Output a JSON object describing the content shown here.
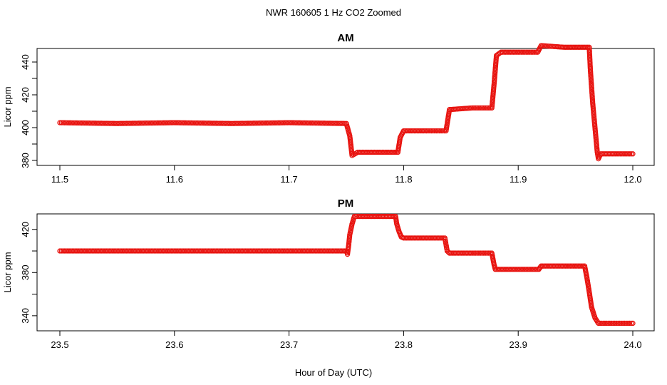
{
  "figure": {
    "title": "NWR  160605  1 Hz CO2 Zoomed",
    "xlabel": "Hour of Day (UTC)"
  },
  "colors": {
    "points": "#e8130f",
    "axis": "#000000"
  },
  "chart_data": [
    {
      "type": "scatter",
      "title": "AM",
      "ylabel": "Licor ppm",
      "xlim": [
        11.5,
        12.0
      ],
      "ylim": [
        380,
        450
      ],
      "x_ticks": [
        "11.5",
        "11.6",
        "11.7",
        "11.8",
        "11.9",
        "12.0"
      ],
      "y_ticks": [
        "380",
        "400",
        "420",
        "440"
      ],
      "y_minor_ticks": [
        390,
        410,
        430,
        450
      ],
      "series": [
        {
          "points": [
            [
              11.5,
              403
            ],
            [
              11.55,
              402.5
            ],
            [
              11.6,
              403
            ],
            [
              11.65,
              402.5
            ],
            [
              11.7,
              403
            ],
            [
              11.75,
              402.5
            ],
            [
              11.753,
              395
            ],
            [
              11.755,
              383
            ],
            [
              11.76,
              385
            ],
            [
              11.78,
              385
            ],
            [
              11.795,
              385
            ],
            [
              11.797,
              394
            ],
            [
              11.8,
              398
            ],
            [
              11.82,
              398
            ],
            [
              11.837,
              398
            ],
            [
              11.84,
              411
            ],
            [
              11.86,
              412
            ],
            [
              11.877,
              412
            ],
            [
              11.879,
              427
            ],
            [
              11.881,
              444
            ],
            [
              11.885,
              446
            ],
            [
              11.9,
              446
            ],
            [
              11.917,
              446
            ],
            [
              11.92,
              450
            ],
            [
              11.94,
              449
            ],
            [
              11.962,
              449
            ],
            [
              11.963,
              435
            ],
            [
              11.965,
              415
            ],
            [
              11.967,
              400
            ],
            [
              11.969,
              385
            ],
            [
              11.97,
              381
            ],
            [
              11.972,
              384
            ],
            [
              11.985,
              384
            ],
            [
              12.0,
              384
            ]
          ]
        }
      ]
    },
    {
      "type": "scatter",
      "title": "PM",
      "ylabel": "Licor ppm",
      "xlim": [
        23.5,
        24.0
      ],
      "ylim": [
        330,
        437
      ],
      "x_ticks": [
        "23.5",
        "23.6",
        "23.7",
        "23.8",
        "23.9",
        "24.0"
      ],
      "y_ticks": [
        "340",
        "380",
        "420"
      ],
      "y_minor_ticks": [
        360,
        400
      ],
      "series": [
        {
          "points": [
            [
              23.5,
              400
            ],
            [
              23.55,
              400
            ],
            [
              23.6,
              400
            ],
            [
              23.65,
              400
            ],
            [
              23.7,
              400
            ],
            [
              23.75,
              400
            ],
            [
              23.751,
              397
            ],
            [
              23.752,
              405
            ],
            [
              23.753,
              415
            ],
            [
              23.755,
              425
            ],
            [
              23.757,
              432
            ],
            [
              23.76,
              432
            ],
            [
              23.78,
              432
            ],
            [
              23.793,
              432
            ],
            [
              23.794,
              425
            ],
            [
              23.796,
              418
            ],
            [
              23.798,
              413
            ],
            [
              23.8,
              412
            ],
            [
              23.82,
              412
            ],
            [
              23.836,
              412
            ],
            [
              23.838,
              400
            ],
            [
              23.84,
              398
            ],
            [
              23.86,
              398
            ],
            [
              23.877,
              398
            ],
            [
              23.879,
              387
            ],
            [
              23.88,
              383
            ],
            [
              23.9,
              383
            ],
            [
              23.918,
              383
            ],
            [
              23.92,
              386
            ],
            [
              23.94,
              386
            ],
            [
              23.958,
              386
            ],
            [
              23.96,
              375
            ],
            [
              23.962,
              362
            ],
            [
              23.964,
              348
            ],
            [
              23.967,
              338
            ],
            [
              23.97,
              333
            ],
            [
              23.98,
              333
            ],
            [
              23.99,
              333
            ],
            [
              24.0,
              333
            ]
          ]
        }
      ]
    }
  ]
}
